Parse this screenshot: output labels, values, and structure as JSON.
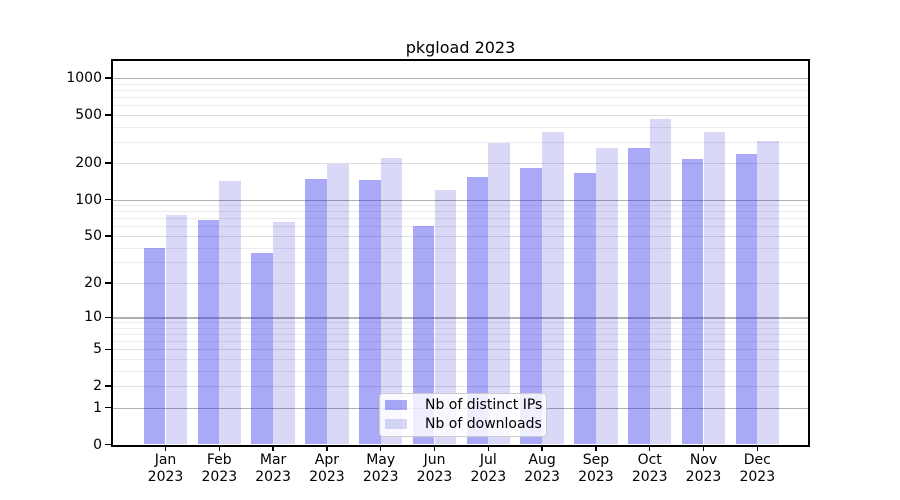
{
  "title": "pkgload 2023",
  "colors": {
    "bar_ips": "rgba(40,40,235,0.40)",
    "bar_ips_solid": "#a9a9f7",
    "bar_downloads": "rgba(0,0,200,0.15)",
    "bar_downloads_solid": "#d9d9f7",
    "grid_major": "#b0b0b0",
    "grid_mid": "#dfdfdf",
    "grid_minor": "#ececec",
    "spine": "#000000",
    "legend_border": "#cccccc"
  },
  "legend": {
    "items": [
      {
        "label": "Nb of distinct IPs",
        "color_key": "bar_ips"
      },
      {
        "label": "Nb of downloads",
        "color_key": "bar_downloads"
      }
    ]
  },
  "chart_data": {
    "type": "bar",
    "title": "pkgload 2023",
    "categories": [
      "Jan",
      "Feb",
      "Mar",
      "Apr",
      "May",
      "Jun",
      "Jul",
      "Aug",
      "Sep",
      "Oct",
      "Nov",
      "Dec"
    ],
    "x_year_label": "2023",
    "series": [
      {
        "name": "Nb of distinct IPs",
        "color_key": "bar_ips",
        "values": [
          40,
          68,
          36,
          148,
          145,
          61,
          155,
          183,
          165,
          267,
          218,
          240
        ]
      },
      {
        "name": "Nb of downloads",
        "color_key": "bar_downloads",
        "values": [
          75,
          142,
          65,
          197,
          220,
          121,
          293,
          358,
          267,
          462,
          364,
          302
        ]
      }
    ],
    "xlabel": "",
    "ylabel": "",
    "yscale": "log1p",
    "yticks": [
      0,
      1,
      2,
      5,
      10,
      20,
      50,
      100,
      200,
      500,
      1000
    ],
    "ylim": [
      0,
      1380
    ],
    "grid": true,
    "legend_position": "lower-center-inside"
  }
}
